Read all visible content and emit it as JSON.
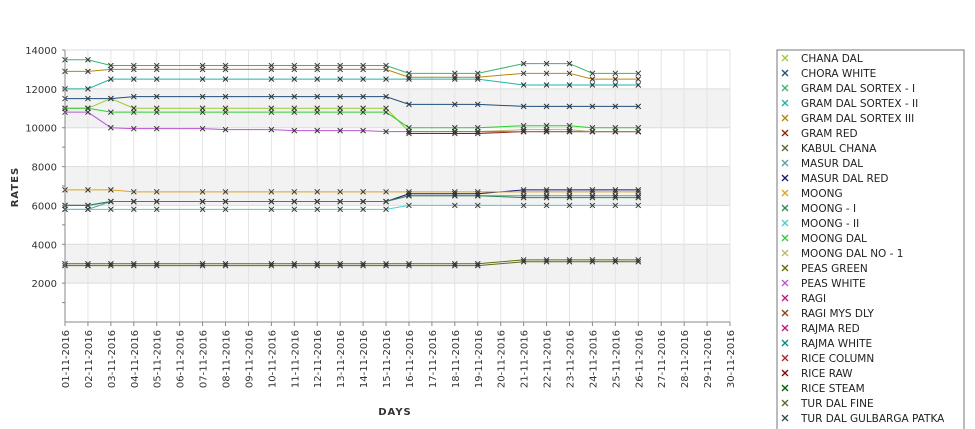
{
  "chart_data": {
    "type": "line",
    "title": "",
    "xlabel": "DAYS",
    "ylabel": "RATES",
    "ylim": [
      0,
      14000
    ],
    "yticks": [
      2000,
      4000,
      6000,
      8000,
      10000,
      12000,
      14000
    ],
    "grid": true,
    "legend_position": "right",
    "categories": [
      "01-11-2016",
      "02-11-2016",
      "03-11-2016",
      "04-11-2016",
      "05-11-2016",
      "06-11-2016",
      "07-11-2016",
      "08-11-2016",
      "09-11-2016",
      "10-11-2016",
      "11-11-2016",
      "12-11-2016",
      "13-11-2016",
      "14-11-2016",
      "15-11-2016",
      "16-11-2016",
      "17-11-2016",
      "18-11-2016",
      "19-11-2016",
      "20-11-2016",
      "21-11-2016",
      "22-11-2016",
      "23-11-2016",
      "24-11-2016",
      "25-11-2016",
      "26-11-2016",
      "27-11-2016",
      "28-11-2016",
      "29-11-2016",
      "30-11-2016"
    ],
    "series": [
      {
        "name": "CHANA DAL",
        "color": "#9acd32",
        "values": [
          11000,
          11000,
          11500,
          11000,
          11000,
          null,
          11000,
          11000,
          null,
          11000,
          11000,
          11000,
          11000,
          11000,
          11000,
          9800,
          null,
          9800,
          9800,
          null,
          9800,
          9800,
          9800,
          9800,
          9800,
          9800,
          null,
          null,
          null,
          null
        ]
      },
      {
        "name": "CHORA WHITE",
        "color": "#1f4e79",
        "values": [
          11500,
          11500,
          11500,
          11600,
          11600,
          null,
          11600,
          11600,
          null,
          11600,
          11600,
          11600,
          11600,
          11600,
          11600,
          11200,
          null,
          11200,
          11200,
          null,
          11100,
          11100,
          11100,
          11100,
          11100,
          11100,
          null,
          null,
          null,
          null
        ]
      },
      {
        "name": "GRAM DAL SORTEX  - I",
        "color": "#3cb371",
        "values": [
          13500,
          13500,
          13200,
          13200,
          13200,
          null,
          13200,
          13200,
          null,
          13200,
          13200,
          13200,
          13200,
          13200,
          13200,
          12800,
          null,
          12800,
          12800,
          null,
          13300,
          13300,
          13300,
          12800,
          12800,
          12800,
          null,
          null,
          null,
          null
        ]
      },
      {
        "name": "GRAM DAL SORTEX - II",
        "color": "#20b2aa",
        "values": [
          12000,
          12000,
          12500,
          12500,
          12500,
          null,
          12500,
          12500,
          null,
          12500,
          12500,
          12500,
          12500,
          12500,
          12500,
          12500,
          null,
          12500,
          12500,
          null,
          12200,
          12200,
          12200,
          12200,
          12200,
          12200,
          null,
          null,
          null,
          null
        ]
      },
      {
        "name": "GRAM DAL SORTEX III",
        "color": "#b8860b",
        "values": [
          12900,
          12900,
          13000,
          13000,
          13000,
          null,
          13000,
          13000,
          null,
          13000,
          13000,
          13000,
          13000,
          13000,
          13000,
          12600,
          null,
          12600,
          12600,
          null,
          12800,
          12800,
          12800,
          12500,
          12500,
          12500,
          null,
          null,
          null,
          null
        ]
      },
      {
        "name": "GRAM RED",
        "color": "#8b2500",
        "values": [
          null,
          null,
          null,
          null,
          null,
          null,
          null,
          null,
          null,
          null,
          null,
          null,
          null,
          null,
          null,
          9700,
          null,
          9700,
          9700,
          null,
          9800,
          9800,
          9800,
          9800,
          9800,
          9800,
          null,
          null,
          null,
          null
        ]
      },
      {
        "name": "KABUL CHANA",
        "color": "#556b2f",
        "values": [
          2900,
          2900,
          2900,
          2900,
          2900,
          null,
          2900,
          2900,
          null,
          2900,
          2900,
          2900,
          2900,
          2900,
          2900,
          2900,
          null,
          2900,
          2900,
          null,
          3100,
          3100,
          3100,
          3100,
          3100,
          3100,
          null,
          null,
          null,
          null
        ]
      },
      {
        "name": "MASUR DAL",
        "color": "#5f9ea0",
        "values": [
          5800,
          5800,
          6200,
          6200,
          6200,
          null,
          6200,
          6200,
          null,
          6200,
          6200,
          6200,
          6200,
          6200,
          6200,
          6500,
          null,
          6500,
          6500,
          null,
          6500,
          6500,
          6500,
          6500,
          6500,
          6500,
          null,
          null,
          null,
          null
        ]
      },
      {
        "name": "MASUR DAL RED",
        "color": "#191970",
        "values": [
          6000,
          6000,
          6200,
          6200,
          6200,
          null,
          6200,
          6200,
          null,
          6200,
          6200,
          6200,
          6200,
          6200,
          6200,
          6600,
          null,
          6600,
          6600,
          null,
          6800,
          6800,
          6800,
          6800,
          6800,
          6800,
          null,
          null,
          null,
          null
        ]
      },
      {
        "name": "MOONG",
        "color": "#daa520",
        "values": [
          6800,
          6800,
          6800,
          6700,
          6700,
          null,
          6700,
          6700,
          null,
          6700,
          6700,
          6700,
          6700,
          6700,
          6700,
          6700,
          null,
          6700,
          6700,
          null,
          6700,
          6700,
          6700,
          6700,
          6700,
          6700,
          null,
          null,
          null,
          null
        ]
      },
      {
        "name": "MOONG - I",
        "color": "#2e8b57",
        "values": [
          6000,
          6000,
          6200,
          6200,
          6200,
          null,
          6200,
          6200,
          null,
          6200,
          6200,
          6200,
          6200,
          6200,
          6200,
          6500,
          null,
          6500,
          6500,
          null,
          6400,
          6400,
          6400,
          6400,
          6400,
          6400,
          null,
          null,
          null,
          null
        ]
      },
      {
        "name": "MOONG - II",
        "color": "#48d1cc",
        "values": [
          5800,
          5800,
          5800,
          5800,
          5800,
          null,
          5800,
          5800,
          null,
          5800,
          5800,
          5800,
          5800,
          5800,
          5800,
          6000,
          null,
          6000,
          6000,
          null,
          6000,
          6000,
          6000,
          6000,
          6000,
          6000,
          null,
          null,
          null,
          null
        ]
      },
      {
        "name": "MOONG DAL",
        "color": "#32cd32",
        "values": [
          11000,
          11000,
          10800,
          10800,
          10800,
          null,
          10800,
          10800,
          null,
          10800,
          10800,
          10800,
          10800,
          10800,
          10800,
          10000,
          null,
          10000,
          10000,
          null,
          10100,
          10100,
          10100,
          10000,
          10000,
          10000,
          null,
          null,
          null,
          null
        ]
      },
      {
        "name": "MOONG DAL NO - 1",
        "color": "#bdb76b",
        "values": [
          null,
          null,
          null,
          null,
          null,
          null,
          null,
          null,
          null,
          null,
          null,
          null,
          null,
          null,
          null,
          9800,
          null,
          9800,
          9800,
          null,
          9900,
          9900,
          9900,
          9800,
          9800,
          9800,
          null,
          null,
          null,
          null
        ]
      },
      {
        "name": "PEAS GREEN",
        "color": "#6b6b00",
        "values": [
          3000,
          3000,
          3000,
          3000,
          3000,
          null,
          3000,
          3000,
          null,
          3000,
          3000,
          3000,
          3000,
          3000,
          3000,
          3000,
          null,
          3000,
          3000,
          null,
          3200,
          3200,
          3200,
          3200,
          3200,
          3200,
          null,
          null,
          null,
          null
        ]
      },
      {
        "name": "PEAS WHITE",
        "color": "#ba55d3",
        "values": [
          10800,
          10800,
          10000,
          9950,
          9950,
          null,
          9950,
          9900,
          null,
          9900,
          9850,
          9850,
          9850,
          9850,
          9800,
          9800,
          null,
          9800,
          9800,
          null,
          9800,
          9800,
          9800,
          9800,
          9800,
          9800,
          null,
          null,
          null,
          null
        ]
      },
      {
        "name": "RAGI",
        "color": "#c71585",
        "values": [
          null,
          null,
          null,
          null,
          null,
          null,
          null,
          null,
          null,
          null,
          null,
          null,
          null,
          null,
          null,
          null,
          null,
          null,
          null,
          null,
          null,
          null,
          null,
          null,
          null,
          null,
          null,
          null,
          null,
          null
        ]
      },
      {
        "name": "RAGI MYS DLY",
        "color": "#8b4513",
        "values": [
          null,
          null,
          null,
          null,
          null,
          null,
          null,
          null,
          null,
          null,
          null,
          null,
          null,
          null,
          null,
          null,
          null,
          null,
          null,
          null,
          null,
          null,
          null,
          null,
          null,
          null,
          null,
          null,
          null,
          null
        ]
      },
      {
        "name": "RAJMA RED",
        "color": "#c71585",
        "values": [
          null,
          null,
          null,
          null,
          null,
          null,
          null,
          null,
          null,
          null,
          null,
          null,
          null,
          null,
          null,
          null,
          null,
          null,
          null,
          null,
          null,
          null,
          null,
          null,
          null,
          null,
          null,
          null,
          null,
          null
        ]
      },
      {
        "name": "RAJMA WHITE",
        "color": "#008b8b",
        "values": [
          null,
          null,
          null,
          null,
          null,
          null,
          null,
          null,
          null,
          null,
          null,
          null,
          null,
          null,
          null,
          null,
          null,
          null,
          null,
          null,
          null,
          null,
          null,
          null,
          null,
          null,
          null,
          null,
          null,
          null
        ]
      },
      {
        "name": "RICE COLUMN",
        "color": "#b22222",
        "values": [
          null,
          null,
          null,
          null,
          null,
          null,
          null,
          null,
          null,
          null,
          null,
          null,
          null,
          null,
          null,
          null,
          null,
          null,
          null,
          null,
          null,
          null,
          null,
          null,
          null,
          null,
          null,
          null,
          null,
          null
        ]
      },
      {
        "name": "RICE RAW",
        "color": "#8b0000",
        "values": [
          null,
          null,
          null,
          null,
          null,
          null,
          null,
          null,
          null,
          null,
          null,
          null,
          null,
          null,
          null,
          null,
          null,
          null,
          null,
          null,
          null,
          null,
          null,
          null,
          null,
          null,
          null,
          null,
          null,
          null
        ]
      },
      {
        "name": "RICE STEAM",
        "color": "#006400",
        "values": [
          null,
          null,
          null,
          null,
          null,
          null,
          null,
          null,
          null,
          null,
          null,
          null,
          null,
          null,
          null,
          null,
          null,
          null,
          null,
          null,
          null,
          null,
          null,
          null,
          null,
          null,
          null,
          null,
          null,
          null
        ]
      },
      {
        "name": "TUR DAL FINE",
        "color": "#556b2f",
        "values": [
          null,
          null,
          null,
          null,
          null,
          null,
          null,
          null,
          null,
          null,
          null,
          null,
          null,
          null,
          null,
          null,
          null,
          null,
          null,
          null,
          null,
          null,
          null,
          null,
          null,
          null,
          null,
          null,
          null,
          null
        ]
      },
      {
        "name": "TUR DAL GULBARGA PATKA",
        "color": "#2f4f4f",
        "values": [
          null,
          null,
          null,
          null,
          null,
          null,
          null,
          null,
          null,
          null,
          null,
          null,
          null,
          null,
          null,
          null,
          null,
          null,
          null,
          null,
          null,
          null,
          null,
          null,
          null,
          null,
          null,
          null,
          null,
          null
        ]
      }
    ]
  }
}
